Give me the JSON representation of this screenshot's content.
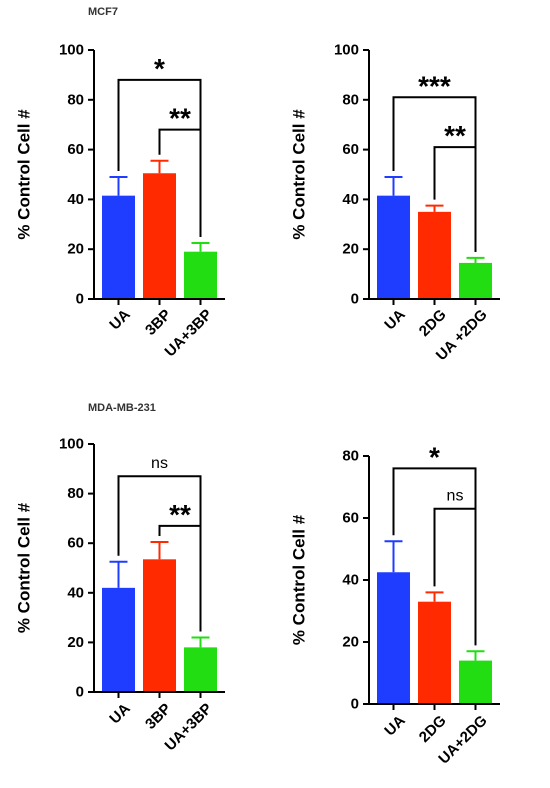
{
  "figure": {
    "group_labels": [
      "MCF7",
      "MDA-MB-231"
    ]
  },
  "colors": {
    "blue": "#1f3dff",
    "red": "#ff2a00",
    "green": "#22dd11",
    "axis": "#000000"
  },
  "chart_data": [
    {
      "type": "bar",
      "group": "MCF7",
      "ylabel": "% Control Cell #",
      "ylim": [
        0,
        100
      ],
      "yticks": [
        "0",
        "20",
        "40",
        "60",
        "80",
        "100"
      ],
      "categories": [
        "UA",
        "3BP",
        "UA+3BP"
      ],
      "values": [
        41.5,
        50.5,
        19
      ],
      "errors": [
        7.5,
        5,
        3.5
      ],
      "bar_colors": [
        "#1f3dff",
        "#ff2a00",
        "#22dd11"
      ],
      "annotations": [
        {
          "from": 0,
          "to": 2,
          "label": "*",
          "y": 88
        },
        {
          "from": 1,
          "to": 2,
          "label": "**",
          "y": 68
        }
      ]
    },
    {
      "type": "bar",
      "group": "MCF7",
      "ylabel": "% Control Cell #",
      "ylim": [
        0,
        100
      ],
      "yticks": [
        "0",
        "20",
        "40",
        "60",
        "80",
        "100"
      ],
      "categories": [
        "UA",
        "2DG",
        "UA +2DG"
      ],
      "values": [
        41.5,
        35,
        14.5
      ],
      "errors": [
        7.5,
        2.5,
        2
      ],
      "bar_colors": [
        "#1f3dff",
        "#ff2a00",
        "#22dd11"
      ],
      "annotations": [
        {
          "from": 0,
          "to": 2,
          "label": "***",
          "y": 81
        },
        {
          "from": 1,
          "to": 2,
          "label": "**",
          "y": 61
        }
      ]
    },
    {
      "type": "bar",
      "group": "MDA-MB-231",
      "ylabel": "% Control Cell #",
      "ylim": [
        0,
        100
      ],
      "yticks": [
        "0",
        "20",
        "40",
        "60",
        "80",
        "100"
      ],
      "categories": [
        "UA",
        "3BP",
        "UA+3BP"
      ],
      "values": [
        42,
        53.5,
        18
      ],
      "errors": [
        10.5,
        7,
        4
      ],
      "bar_colors": [
        "#1f3dff",
        "#ff2a00",
        "#22dd11"
      ],
      "annotations": [
        {
          "from": 0,
          "to": 2,
          "label": "ns",
          "y": 87
        },
        {
          "from": 1,
          "to": 2,
          "label": "**",
          "y": 67
        }
      ]
    },
    {
      "type": "bar",
      "group": "MDA-MB-231",
      "ylabel": "% Control Cell #",
      "ylim": [
        0,
        80
      ],
      "yticks": [
        "0",
        "20",
        "40",
        "60",
        "80"
      ],
      "categories": [
        "UA",
        "2DG",
        "UA+2DG"
      ],
      "values": [
        42.5,
        33,
        14
      ],
      "errors": [
        10,
        3,
        3
      ],
      "bar_colors": [
        "#1f3dff",
        "#ff2a00",
        "#22dd11"
      ],
      "annotations": [
        {
          "from": 0,
          "to": 2,
          "label": "*",
          "y": 76
        },
        {
          "from": 1,
          "to": 2,
          "label": "ns",
          "y": 63
        }
      ]
    }
  ]
}
